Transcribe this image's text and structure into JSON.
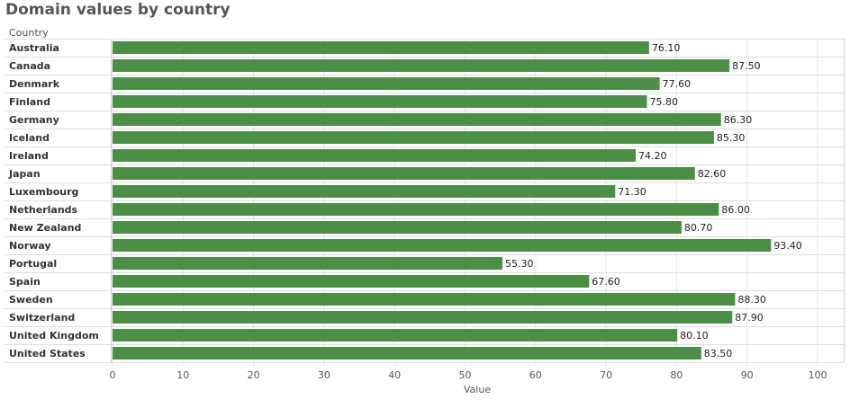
{
  "page": {
    "title": "Domain values by country"
  },
  "chart_data": {
    "type": "bar",
    "orientation": "horizontal",
    "title": "Domain values by country",
    "row_header": "Country",
    "xlabel": "Value",
    "ylabel": "",
    "xlim": [
      0,
      100
    ],
    "xticks": [
      0,
      10,
      20,
      30,
      40,
      50,
      60,
      70,
      80,
      90,
      100
    ],
    "grid": true,
    "bar_color": "#4a8f45",
    "categories": [
      "Australia",
      "Canada",
      "Denmark",
      "Finland",
      "Germany",
      "Iceland",
      "Ireland",
      "Japan",
      "Luxembourg",
      "Netherlands",
      "New Zealand",
      "Norway",
      "Portugal",
      "Spain",
      "Sweden",
      "Switzerland",
      "United Kingdom",
      "United States"
    ],
    "values": [
      76.1,
      87.5,
      77.6,
      75.8,
      86.3,
      85.3,
      74.2,
      82.6,
      71.3,
      86.0,
      80.7,
      93.4,
      55.3,
      67.6,
      88.3,
      87.9,
      80.1,
      83.5
    ]
  }
}
